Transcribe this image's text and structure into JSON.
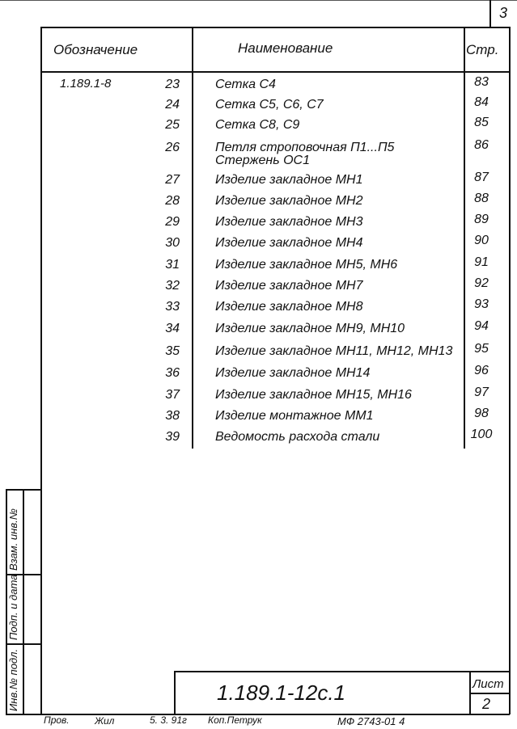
{
  "sheet_corner_number": "3",
  "table": {
    "headers": {
      "designation": "Обозначение",
      "name": "Наименование",
      "page": "Стр."
    },
    "designation": "1.189.1-8",
    "rows": [
      {
        "num": "23",
        "name": "Сетка С4",
        "page": "83"
      },
      {
        "num": "24",
        "name": "Сетка С5, С6, С7",
        "page": "84"
      },
      {
        "num": "25",
        "name": "Сетка С8, С9",
        "page": "85"
      },
      {
        "num": "26",
        "name": "Петля строповочная П1...П5",
        "name2": "Стержень ОС1",
        "page": "86"
      },
      {
        "num": "27",
        "name": "Изделие закладное МН1",
        "page": "87"
      },
      {
        "num": "28",
        "name": "Изделие закладное МН2",
        "page": "88"
      },
      {
        "num": "29",
        "name": "Изделие закладное МН3",
        "page": "89"
      },
      {
        "num": "30",
        "name": "Изделие закладное МН4",
        "page": "90"
      },
      {
        "num": "31",
        "name": "Изделие закладное МН5, МН6",
        "page": "91"
      },
      {
        "num": "32",
        "name": "Изделие закладное МН7",
        "page": "92"
      },
      {
        "num": "33",
        "name": "Изделие закладное МН8",
        "page": "93"
      },
      {
        "num": "34",
        "name": "Изделие закладное МН9, МН10",
        "page": "94"
      },
      {
        "num": "35",
        "name": "Изделие закладное МН11, МН12, МН13",
        "page": "95"
      },
      {
        "num": "36",
        "name": "Изделие закладное МН14",
        "page": "96"
      },
      {
        "num": "37",
        "name": "Изделие закладное МН15, МН16",
        "page": "97"
      },
      {
        "num": "38",
        "name": "Изделие монтажное ММ1",
        "page": "98"
      },
      {
        "num": "39",
        "name": "Ведомость расхода стали",
        "page": "100"
      }
    ]
  },
  "side_stamp": {
    "inv_orig": "Инв.№ подл.",
    "sign_date": "Подп. и дата",
    "replace_inv": "Взам. инв.№"
  },
  "title_block": {
    "doc_code": "1.189.1-12с.1",
    "sheet_label": "Лист",
    "sheet_number": "2"
  },
  "footer": {
    "checked": "Пров.",
    "signature": "Жил",
    "date": "5. 3. 91г",
    "copied": "Коп.Петрук",
    "format": "МФ 2743-01  4"
  }
}
